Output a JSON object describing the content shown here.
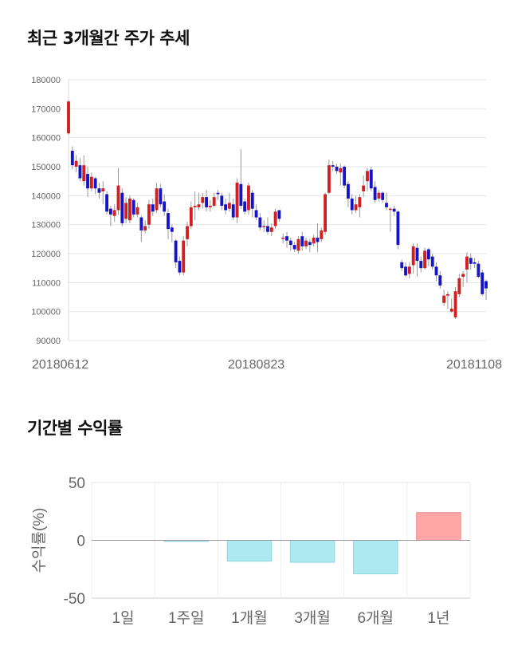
{
  "titles": {
    "price_trend": "최근 3개월간 주가 추세",
    "period_returns": "기간별 수익률"
  },
  "chart_data": [
    {
      "type": "candlestick",
      "y_ticks": [
        "180000",
        "170000",
        "160000",
        "150000",
        "140000",
        "130000",
        "120000",
        "110000",
        "100000",
        "90000"
      ],
      "ylim": [
        90000,
        180000
      ],
      "x_labels": [
        {
          "index": 0,
          "text": "20180612"
        },
        {
          "index": 49,
          "text": "20180823"
        },
        {
          "index": 99,
          "text": "20181108"
        }
      ],
      "colors": {
        "up": "#d11f1f",
        "down": "#1414c8",
        "wick": "#999999"
      },
      "candles": [
        [
          161500,
          172500,
          161000,
          173000
        ],
        [
          155500,
          150500,
          149000,
          157000
        ],
        [
          150000,
          152000,
          148000,
          154000
        ],
        [
          150500,
          146000,
          145000,
          153000
        ],
        [
          145000,
          150500,
          143500,
          154000
        ],
        [
          147500,
          142500,
          139500,
          150000
        ],
        [
          142500,
          146500,
          141500,
          148000
        ],
        [
          146000,
          142500,
          140500,
          146500
        ],
        [
          142500,
          141000,
          139000,
          144500
        ],
        [
          141500,
          142500,
          137000,
          145000
        ],
        [
          140500,
          134500,
          133500,
          141500
        ],
        [
          135500,
          133500,
          129500,
          136500
        ],
        [
          133000,
          135000,
          131000,
          137000
        ],
        [
          135000,
          143500,
          133500,
          149500
        ],
        [
          141000,
          130500,
          129500,
          142500
        ],
        [
          132000,
          137500,
          130500,
          139500
        ],
        [
          131500,
          139000,
          130500,
          140000
        ],
        [
          138500,
          133500,
          132500,
          139000
        ],
        [
          133500,
          136000,
          132500,
          137500
        ],
        [
          132500,
          128000,
          124000,
          133000
        ],
        [
          128000,
          129500,
          127000,
          131500
        ],
        [
          130000,
          137000,
          128500,
          138500
        ],
        [
          137000,
          134500,
          133000,
          139000
        ],
        [
          135000,
          142500,
          134000,
          144500
        ],
        [
          142500,
          137000,
          136000,
          144000
        ],
        [
          138000,
          134500,
          133000,
          140500
        ],
        [
          134000,
          128500,
          125000,
          135500
        ],
        [
          129000,
          127500,
          124000,
          130000
        ],
        [
          124500,
          117000,
          115000,
          125000
        ],
        [
          117500,
          113500,
          112500,
          119000
        ],
        [
          113500,
          124500,
          112500,
          126000
        ],
        [
          125000,
          129500,
          122500,
          131000
        ],
        [
          129500,
          136000,
          128500,
          138000
        ],
        [
          136000,
          136500,
          131500,
          141500
        ],
        [
          136000,
          137000,
          135000,
          141000
        ],
        [
          137500,
          139500,
          135500,
          141000
        ],
        [
          139500,
          136000,
          134500,
          142000
        ],
        [
          136000,
          136500,
          134500,
          138500
        ],
        [
          136500,
          139500,
          136000,
          141000
        ],
        [
          141000,
          140500,
          138500,
          142000
        ],
        [
          140000,
          136500,
          135000,
          141000
        ],
        [
          137000,
          135000,
          133500,
          139000
        ],
        [
          135500,
          137500,
          134500,
          141000
        ],
        [
          137000,
          132500,
          131500,
          139000
        ],
        [
          132500,
          144500,
          130500,
          146000
        ],
        [
          144000,
          136500,
          135500,
          156000
        ],
        [
          138000,
          134500,
          133500,
          139000
        ],
        [
          135000,
          143500,
          133500,
          144500
        ],
        [
          141000,
          135500,
          132500,
          142000
        ],
        [
          135000,
          132500,
          131500,
          137000
        ],
        [
          132500,
          129000,
          128000,
          134000
        ],
        [
          129500,
          129500,
          127500,
          131500
        ],
        [
          129500,
          127500,
          126500,
          132500
        ],
        [
          127500,
          129000,
          126000,
          130500
        ],
        [
          129500,
          134500,
          128500,
          135500
        ],
        [
          135000,
          132000,
          131000,
          135000
        ],
        [
          125500,
          125500,
          123500,
          127000
        ],
        [
          126000,
          124500,
          122000,
          127500
        ],
        [
          124500,
          123000,
          121000,
          125500
        ],
        [
          123000,
          121500,
          120500,
          124000
        ],
        [
          121000,
          125000,
          120000,
          126000
        ],
        [
          126000,
          122500,
          121000,
          127500
        ],
        [
          122500,
          124500,
          121500,
          125500
        ],
        [
          124000,
          123000,
          120500,
          125000
        ],
        [
          123500,
          125500,
          122500,
          126500
        ],
        [
          125500,
          124000,
          120500,
          130500
        ],
        [
          125000,
          128000,
          124000,
          129000
        ],
        [
          127500,
          140500,
          126500,
          141000
        ],
        [
          141000,
          150500,
          140500,
          152500
        ],
        [
          150500,
          150000,
          148500,
          152000
        ],
        [
          150000,
          148500,
          147500,
          151000
        ],
        [
          148000,
          149500,
          143500,
          151000
        ],
        [
          150000,
          143500,
          142500,
          150500
        ],
        [
          144000,
          139000,
          136000,
          145000
        ],
        [
          139000,
          135000,
          133500,
          140500
        ],
        [
          135000,
          137000,
          134000,
          140000
        ],
        [
          136000,
          139500,
          132500,
          140500
        ],
        [
          141500,
          143500,
          139500,
          147000
        ],
        [
          145000,
          148500,
          141500,
          149500
        ],
        [
          149000,
          142500,
          141500,
          150000
        ],
        [
          143000,
          138500,
          137500,
          145000
        ],
        [
          139000,
          141000,
          138000,
          142000
        ],
        [
          141000,
          138500,
          137500,
          141500
        ],
        [
          137500,
          136000,
          135000,
          141000
        ],
        [
          135500,
          135500,
          127500,
          136000
        ],
        [
          135500,
          134500,
          133000,
          136500
        ],
        [
          134500,
          123000,
          121500,
          135000
        ],
        [
          117000,
          115000,
          114000,
          118000
        ],
        [
          115500,
          112500,
          112000,
          117000
        ],
        [
          113000,
          115500,
          111500,
          117000
        ],
        [
          116000,
          122500,
          113000,
          123500
        ],
        [
          122000,
          117500,
          112000,
          123500
        ],
        [
          117500,
          115000,
          113500,
          119000
        ],
        [
          115000,
          121000,
          114500,
          122000
        ],
        [
          121500,
          118000,
          115500,
          122000
        ],
        [
          119000,
          115500,
          114500,
          120000
        ],
        [
          115500,
          112500,
          110500,
          117000
        ],
        [
          112500,
          109000,
          108000,
          114000
        ],
        [
          103000,
          105500,
          102000,
          107500
        ],
        [
          105500,
          106000,
          101000,
          107000
        ],
        [
          100000,
          101000,
          99500,
          104500
        ],
        [
          98000,
          107000,
          97500,
          108500
        ],
        [
          106000,
          111500,
          105000,
          113000
        ],
        [
          112000,
          113000,
          108500,
          114000
        ],
        [
          114500,
          119000,
          110000,
          120500
        ],
        [
          118500,
          116500,
          114500,
          120000
        ],
        [
          117000,
          116500,
          115000,
          118500
        ],
        [
          116500,
          112000,
          111500,
          117500
        ],
        [
          113500,
          106000,
          105500,
          114500
        ],
        [
          110500,
          108000,
          104000,
          111000
        ]
      ]
    },
    {
      "type": "bar",
      "categories": [
        "1일",
        "1주일",
        "1개월",
        "3개월",
        "6개월",
        "1년"
      ],
      "values": [
        0,
        -1,
        -18,
        -19,
        -29,
        24
      ],
      "ylabel": "수익률(%)",
      "ylim": [
        -50,
        50
      ],
      "y_ticks": [
        "50",
        "0",
        "-50"
      ],
      "colors": {
        "positive": "#ffa6a6",
        "negative": "#ade9f1"
      }
    }
  ]
}
